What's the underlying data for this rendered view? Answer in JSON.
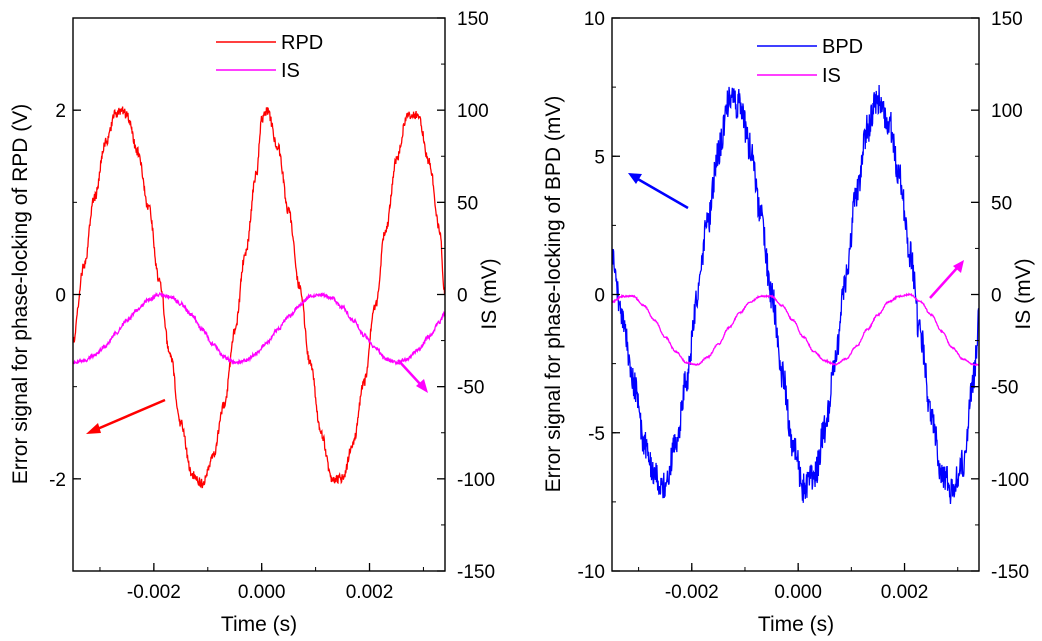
{
  "chart_data": [
    {
      "type": "line",
      "xlabel": "Time (s)",
      "ylabel_left": "Error signal for phase-locking of RPD (V)",
      "ylabel_right": "IS (mV)",
      "xlim": [
        -0.0035,
        0.0034
      ],
      "ylim_left": [
        -3,
        3
      ],
      "ylim_right": [
        -150,
        150
      ],
      "x_ticks": [
        -0.002,
        0.0,
        0.002
      ],
      "x_tick_labels": [
        "-0.002",
        "0.000",
        "0.002"
      ],
      "y_left_ticks": [
        -2,
        0,
        2
      ],
      "y_left_tick_labels": [
        "-2",
        "0",
        "2"
      ],
      "y_right_ticks": [
        -150,
        -100,
        -50,
        0,
        50,
        100,
        150
      ],
      "y_right_tick_labels": [
        "-150",
        "-100",
        "-50",
        "0",
        "50",
        "100",
        "150"
      ],
      "legend_position": "top-center",
      "series": [
        {
          "name": "RPD",
          "axis": "left",
          "color": "#ff0000",
          "noise": 0.05,
          "x": [
            -0.0035,
            -0.0033,
            -0.0031,
            -0.0029,
            -0.0027,
            -0.0026,
            -0.0025,
            -0.0023,
            -0.0021,
            -0.0019,
            -0.0017,
            -0.0015,
            -0.0013,
            -0.0011,
            -0.0009,
            -0.0007,
            -0.0005,
            -0.0003,
            -0.0001,
            0.0,
            0.0001,
            0.0003,
            0.0005,
            0.0007,
            0.0009,
            0.0011,
            0.0013,
            0.0015,
            0.0017,
            0.0019,
            0.0021,
            0.0023,
            0.0025,
            0.0027,
            0.0029,
            0.0031,
            0.0033,
            0.0034
          ],
          "y": [
            -0.5,
            0.3,
            1.05,
            1.65,
            1.97,
            2.0,
            1.95,
            1.55,
            0.95,
            0.15,
            -0.65,
            -1.4,
            -1.95,
            -2.05,
            -1.75,
            -1.2,
            -0.4,
            0.45,
            1.3,
            1.9,
            2.0,
            1.6,
            0.9,
            0.1,
            -0.75,
            -1.5,
            -2.0,
            -2.0,
            -1.6,
            -0.95,
            -0.15,
            0.7,
            1.45,
            1.95,
            1.95,
            1.45,
            0.7,
            0.0
          ]
        },
        {
          "name": "IS",
          "axis": "right",
          "color": "#ff00ff",
          "noise": 1.0,
          "x": [
            -0.0035,
            -0.0033,
            -0.0031,
            -0.0029,
            -0.0027,
            -0.0025,
            -0.0023,
            -0.0021,
            -0.0019,
            -0.0017,
            -0.0015,
            -0.0013,
            -0.0011,
            -0.0009,
            -0.0007,
            -0.0005,
            -0.0003,
            -0.0001,
            0.0001,
            0.0003,
            0.0005,
            0.0007,
            0.0009,
            0.0011,
            0.0013,
            0.0015,
            0.0017,
            0.0019,
            0.0021,
            0.0023,
            0.0025,
            0.0027,
            0.0029,
            0.0031,
            0.0033,
            0.0034
          ],
          "y": [
            -37,
            -36,
            -33,
            -28,
            -21,
            -14,
            -8,
            -3,
            0,
            -1,
            -5,
            -11,
            -19,
            -27,
            -34,
            -37,
            -36,
            -32,
            -26,
            -19,
            -12,
            -6,
            -1,
            0,
            -2,
            -7,
            -14,
            -22,
            -29,
            -35,
            -37,
            -35,
            -30,
            -23,
            -15,
            -10
          ]
        }
      ]
    },
    {
      "type": "line",
      "xlabel": "Time (s)",
      "ylabel_left": "Error signal for phase-locking of BPD (mV)",
      "ylabel_right": "IS (mV)",
      "xlim": [
        -0.0035,
        0.0034
      ],
      "ylim_left": [
        -10,
        10
      ],
      "ylim_right": [
        -150,
        150
      ],
      "x_ticks": [
        -0.002,
        0.0,
        0.002
      ],
      "x_tick_labels": [
        "-0.002",
        "0.000",
        "0.002"
      ],
      "y_left_ticks": [
        -10,
        -5,
        0,
        5,
        10
      ],
      "y_left_tick_labels": [
        "-10",
        "-5",
        "0",
        "5",
        "10"
      ],
      "y_right_ticks": [
        -150,
        -100,
        -50,
        0,
        50,
        100,
        150
      ],
      "y_right_tick_labels": [
        "-150",
        "-100",
        "-50",
        "0",
        "50",
        "100",
        "150"
      ],
      "legend_position": "top-center",
      "series": [
        {
          "name": "BPD",
          "axis": "left",
          "color": "#0000ff",
          "noise": 0.55,
          "x": [
            -0.0035,
            -0.0033,
            -0.0031,
            -0.0029,
            -0.0027,
            -0.0025,
            -0.0023,
            -0.0021,
            -0.0019,
            -0.0017,
            -0.0015,
            -0.0013,
            -0.0011,
            -0.0009,
            -0.0007,
            -0.0005,
            -0.0003,
            -0.0001,
            0.0001,
            0.0003,
            0.0005,
            0.0007,
            0.0009,
            0.0011,
            0.0013,
            0.0015,
            0.0017,
            0.0019,
            0.0021,
            0.0023,
            0.0025,
            0.0027,
            0.0029,
            0.0031,
            0.0033,
            0.0034
          ],
          "y": [
            1.5,
            -0.8,
            -3.2,
            -5.3,
            -6.6,
            -6.9,
            -5.4,
            -3.0,
            -0.2,
            2.6,
            5.2,
            7.0,
            6.9,
            5.3,
            2.8,
            0.0,
            -2.9,
            -5.4,
            -7.0,
            -6.6,
            -4.9,
            -2.3,
            0.6,
            3.6,
            6.0,
            7.1,
            6.3,
            4.3,
            1.5,
            -1.5,
            -4.3,
            -6.4,
            -7.1,
            -6.1,
            -3.0,
            -1.0
          ]
        },
        {
          "name": "IS",
          "axis": "right",
          "color": "#ff00ff",
          "noise": 0.4,
          "x": [
            -0.0035,
            -0.0033,
            -0.0031,
            -0.0029,
            -0.0027,
            -0.0025,
            -0.0023,
            -0.0021,
            -0.0019,
            -0.0017,
            -0.0015,
            -0.0013,
            -0.0011,
            -0.0009,
            -0.0007,
            -0.0005,
            -0.0003,
            -0.0001,
            0.0001,
            0.0003,
            0.0005,
            0.0007,
            0.0009,
            0.0011,
            0.0013,
            0.0015,
            0.0017,
            0.0019,
            0.0021,
            0.0023,
            0.0025,
            0.0027,
            0.0029,
            0.0031,
            0.0033,
            0.0034
          ],
          "y": [
            -4,
            -1,
            -1,
            -6,
            -14,
            -23,
            -31,
            -37,
            -38,
            -34,
            -27,
            -18,
            -10,
            -4,
            -1,
            -1,
            -6,
            -14,
            -23,
            -31,
            -36,
            -38,
            -35,
            -28,
            -19,
            -11,
            -4,
            -1,
            0,
            -4,
            -11,
            -20,
            -29,
            -35,
            -38,
            -38
          ]
        }
      ]
    }
  ]
}
